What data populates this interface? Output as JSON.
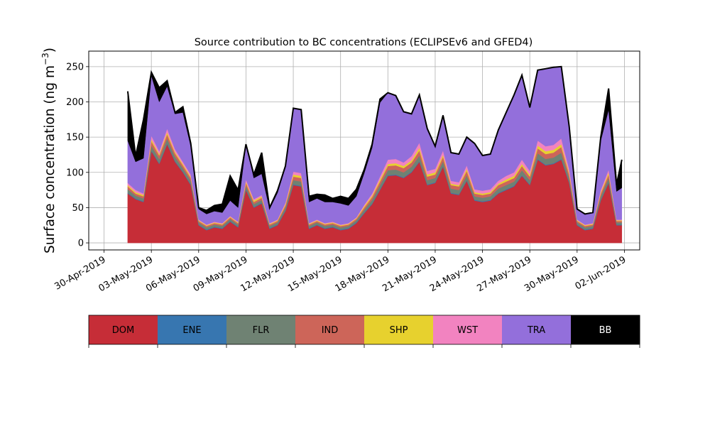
{
  "chart_data": {
    "type": "area",
    "title": "Source contribution to BC concentrations (ECLIPSEv6 and GFED4)",
    "ylabel": "Surface concentration (ng m",
    "ylabel_superscript": "−3",
    "ylabel_close": ")",
    "xlabel": "",
    "x_axis": "date",
    "xlim": [
      "2019-04-30",
      "2019-06-02"
    ],
    "ylim": [
      -10,
      272
    ],
    "grid": true,
    "x_ticks": [
      {
        "date": "2019-04-30",
        "label": "30-Apr-2019"
      },
      {
        "date": "2019-05-03",
        "label": "03-May-2019"
      },
      {
        "date": "2019-05-06",
        "label": "06-May-2019"
      },
      {
        "date": "2019-05-09",
        "label": "09-May-2019"
      },
      {
        "date": "2019-05-12",
        "label": "12-May-2019"
      },
      {
        "date": "2019-05-15",
        "label": "15-May-2019"
      },
      {
        "date": "2019-05-18",
        "label": "18-May-2019"
      },
      {
        "date": "2019-05-21",
        "label": "21-May-2019"
      },
      {
        "date": "2019-05-24",
        "label": "24-May-2019"
      },
      {
        "date": "2019-05-27",
        "label": "27-May-2019"
      },
      {
        "date": "2019-05-30",
        "label": "30-May-2019"
      },
      {
        "date": "2019-06-02",
        "label": "02-Jun-2019"
      }
    ],
    "y_ticks": [
      0,
      50,
      100,
      150,
      200,
      250
    ],
    "x": [
      "2019-05-01 12:00",
      "2019-05-02 00:00",
      "2019-05-02 12:00",
      "2019-05-03 00:00",
      "2019-05-03 12:00",
      "2019-05-04 00:00",
      "2019-05-04 12:00",
      "2019-05-05 00:00",
      "2019-05-05 12:00",
      "2019-05-06 00:00",
      "2019-05-06 12:00",
      "2019-05-07 00:00",
      "2019-05-07 12:00",
      "2019-05-08 00:00",
      "2019-05-08 12:00",
      "2019-05-09 00:00",
      "2019-05-09 12:00",
      "2019-05-10 00:00",
      "2019-05-10 12:00",
      "2019-05-11 00:00",
      "2019-05-11 12:00",
      "2019-05-12 00:00",
      "2019-05-12 12:00",
      "2019-05-13 00:00",
      "2019-05-13 12:00",
      "2019-05-14 00:00",
      "2019-05-14 12:00",
      "2019-05-15 00:00",
      "2019-05-15 12:00",
      "2019-05-16 00:00",
      "2019-05-16 12:00",
      "2019-05-17 00:00",
      "2019-05-17 12:00",
      "2019-05-18 00:00",
      "2019-05-18 12:00",
      "2019-05-19 00:00",
      "2019-05-19 12:00",
      "2019-05-20 00:00",
      "2019-05-20 12:00",
      "2019-05-21 00:00",
      "2019-05-21 12:00",
      "2019-05-22 00:00",
      "2019-05-22 12:00",
      "2019-05-23 00:00",
      "2019-05-23 12:00",
      "2019-05-24 00:00",
      "2019-05-24 12:00",
      "2019-05-25 00:00",
      "2019-05-25 12:00",
      "2019-05-26 00:00",
      "2019-05-26 12:00",
      "2019-05-27 00:00",
      "2019-05-27 12:00",
      "2019-05-28 00:00",
      "2019-05-28 12:00",
      "2019-05-29 00:00",
      "2019-05-29 12:00",
      "2019-05-30 00:00",
      "2019-05-30 12:00",
      "2019-05-31 00:00",
      "2019-05-31 12:00",
      "2019-06-01 00:00",
      "2019-06-01 12:00",
      "2019-06-01 20:00"
    ],
    "series": [
      {
        "name": "DOM",
        "color": "#c62d37",
        "values": [
          70,
          62,
          58,
          130,
          112,
          140,
          115,
          100,
          82,
          25,
          18,
          22,
          20,
          30,
          22,
          75,
          50,
          56,
          20,
          25,
          45,
          82,
          80,
          20,
          25,
          20,
          22,
          18,
          20,
          28,
          42,
          55,
          75,
          95,
          96,
          92,
          100,
          115,
          82,
          85,
          108,
          70,
          68,
          88,
          60,
          58,
          60,
          70,
          75,
          80,
          95,
          82,
          118,
          110,
          112,
          118,
          85,
          25,
          18,
          20,
          60,
          85,
          25,
          25
        ]
      },
      {
        "name": "ENE",
        "color": "#3776b0",
        "values": [
          1,
          1,
          1,
          1,
          1,
          1,
          1,
          1,
          1,
          1,
          1,
          1,
          1,
          1,
          1,
          1,
          1,
          1,
          1,
          1,
          1,
          1,
          1,
          1,
          1,
          1,
          1,
          1,
          1,
          1,
          1,
          1,
          1,
          1,
          1,
          1,
          1,
          1,
          1,
          1,
          1,
          1,
          1,
          1,
          1,
          1,
          1,
          1,
          1,
          1,
          1,
          1,
          1,
          1,
          1,
          1,
          1,
          1,
          1,
          1,
          1,
          1,
          1,
          1
        ]
      },
      {
        "name": "FLR",
        "color": "#6f8273",
        "values": [
          5,
          4,
          4,
          7,
          6,
          7,
          6,
          5,
          5,
          3,
          3,
          3,
          3,
          3,
          3,
          5,
          4,
          4,
          3,
          3,
          4,
          6,
          6,
          3,
          3,
          3,
          3,
          3,
          3,
          3,
          4,
          5,
          6,
          7,
          7,
          7,
          7,
          8,
          6,
          6,
          7,
          6,
          6,
          7,
          5,
          5,
          5,
          6,
          6,
          6,
          7,
          6,
          8,
          8,
          8,
          9,
          6,
          3,
          3,
          3,
          5,
          6,
          3,
          3
        ]
      },
      {
        "name": "IND",
        "color": "#cd6559",
        "values": [
          4,
          3,
          3,
          6,
          5,
          6,
          5,
          4,
          4,
          2,
          2,
          2,
          2,
          2,
          2,
          4,
          3,
          3,
          2,
          2,
          3,
          5,
          5,
          2,
          2,
          2,
          2,
          2,
          2,
          2,
          3,
          4,
          5,
          6,
          6,
          6,
          6,
          7,
          5,
          5,
          6,
          5,
          5,
          6,
          4,
          4,
          4,
          5,
          5,
          5,
          6,
          5,
          7,
          7,
          7,
          8,
          5,
          2,
          2,
          2,
          4,
          5,
          2,
          2
        ]
      },
      {
        "name": "SHP",
        "color": "#e7d12e",
        "values": [
          2,
          2,
          2,
          3,
          2,
          3,
          2,
          2,
          2,
          1,
          1,
          1,
          1,
          1,
          1,
          2,
          2,
          2,
          1,
          1,
          2,
          3,
          3,
          1,
          1,
          1,
          1,
          1,
          1,
          1,
          2,
          2,
          3,
          3,
          3,
          3,
          3,
          4,
          3,
          3,
          3,
          2,
          2,
          3,
          2,
          2,
          2,
          2,
          3,
          3,
          3,
          3,
          4,
          4,
          4,
          4,
          3,
          1,
          1,
          1,
          2,
          3,
          1,
          1
        ]
      },
      {
        "name": "WST",
        "color": "#f283c0",
        "values": [
          3,
          3,
          2,
          5,
          4,
          5,
          4,
          3,
          3,
          1,
          1,
          1,
          1,
          1,
          1,
          3,
          2,
          2,
          1,
          1,
          2,
          4,
          4,
          1,
          1,
          1,
          1,
          1,
          1,
          1,
          2,
          3,
          4,
          6,
          6,
          5,
          6,
          7,
          5,
          5,
          6,
          4,
          4,
          5,
          4,
          4,
          4,
          4,
          5,
          5,
          6,
          5,
          7,
          7,
          7,
          8,
          5,
          1,
          1,
          1,
          3,
          4,
          1,
          1
        ]
      },
      {
        "name": "TRA",
        "color": "#936fdb",
        "values": [
          60,
          40,
          50,
          85,
          70,
          60,
          50,
          70,
          40,
          15,
          15,
          15,
          15,
          22,
          20,
          50,
          30,
          30,
          20,
          38,
          50,
          90,
          90,
          30,
          30,
          30,
          28,
          30,
          25,
          30,
          45,
          65,
          105,
          95,
          90,
          72,
          60,
          68,
          60,
          32,
          50,
          40,
          40,
          40,
          65,
          50,
          50,
          72,
          90,
          110,
          120,
          90,
          100,
          110,
          110,
          102,
          60,
          15,
          15,
          15,
          70,
          85,
          40,
          45
        ]
      },
      {
        "name": "BB",
        "color": "#000000",
        "values": [
          70,
          8,
          55,
          5,
          20,
          8,
          2,
          8,
          4,
          2,
          5,
          8,
          12,
          35,
          25,
          0,
          5,
          30,
          2,
          3,
          2,
          0,
          0,
          8,
          6,
          10,
          5,
          10,
          10,
          10,
          5,
          5,
          5,
          0,
          0,
          0,
          0,
          0,
          0,
          0,
          0,
          0,
          0,
          0,
          0,
          0,
          0,
          0,
          0,
          0,
          0,
          0,
          0,
          0,
          0,
          0,
          0,
          0,
          0,
          0,
          5,
          30,
          10,
          40
        ]
      }
    ],
    "legend": {
      "placement": "bottom-colorbar",
      "entries": [
        {
          "label": "DOM",
          "color": "#c62d37",
          "text_color": "#000000"
        },
        {
          "label": "ENE",
          "color": "#3776b0",
          "text_color": "#000000"
        },
        {
          "label": "FLR",
          "color": "#6f8273",
          "text_color": "#000000"
        },
        {
          "label": "IND",
          "color": "#cd6559",
          "text_color": "#000000"
        },
        {
          "label": "SHP",
          "color": "#e7d12e",
          "text_color": "#000000"
        },
        {
          "label": "WST",
          "color": "#f283c0",
          "text_color": "#000000"
        },
        {
          "label": "TRA",
          "color": "#936fdb",
          "text_color": "#000000"
        },
        {
          "label": "BB",
          "color": "#000000",
          "text_color": "#ffffff"
        }
      ]
    }
  }
}
